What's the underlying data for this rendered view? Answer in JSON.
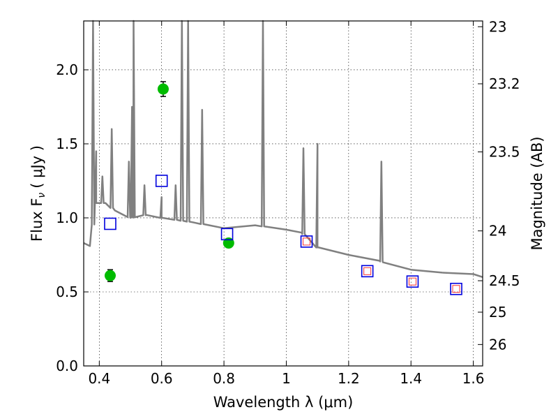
{
  "chart_data": {
    "type": "scatter",
    "xlabel": "Wavelength  λ (μm)",
    "ylabel": "Flux  F",
    "ylabel_sub": "ν",
    "ylabel_unit": "( μJy )",
    "y2label": "Magnitude (AB)",
    "xlim": [
      0.35,
      1.63
    ],
    "ylim": [
      0.0,
      2.33
    ],
    "grid": true,
    "x_ticks": [
      {
        "value": 0.4,
        "label": "0.4"
      },
      {
        "value": 0.6,
        "label": "0.6"
      },
      {
        "value": 0.8,
        "label": "0.8"
      },
      {
        "value": 1.0,
        "label": "1"
      },
      {
        "value": 1.2,
        "label": "1.2"
      },
      {
        "value": 1.4,
        "label": "1.4"
      },
      {
        "value": 1.6,
        "label": "1.6"
      }
    ],
    "y_ticks": [
      {
        "value": 0.0,
        "label": "0.0"
      },
      {
        "value": 0.5,
        "label": "0.5"
      },
      {
        "value": 1.0,
        "label": "1.0"
      },
      {
        "value": 1.5,
        "label": "1.5"
      },
      {
        "value": 2.0,
        "label": "2.0"
      }
    ],
    "y2_ticks": [
      {
        "value": 23,
        "label": "23"
      },
      {
        "value": 23.2,
        "label": "23.2"
      },
      {
        "value": 23.5,
        "label": "23.5"
      },
      {
        "value": 24,
        "label": "24"
      },
      {
        "value": 24.5,
        "label": "24.5"
      },
      {
        "value": 25,
        "label": "25"
      },
      {
        "value": 26,
        "label": "26"
      }
    ],
    "series": [
      {
        "kind": "model-spectrum",
        "color": "#808080",
        "continuum": [
          [
            0.35,
            0.83
          ],
          [
            0.37,
            0.81
          ],
          [
            0.39,
            1.1
          ],
          [
            0.42,
            1.1
          ],
          [
            0.45,
            1.05
          ],
          [
            0.5,
            1.0
          ],
          [
            0.55,
            1.02
          ],
          [
            0.6,
            1.0
          ],
          [
            0.7,
            0.97
          ],
          [
            0.8,
            0.93
          ],
          [
            0.9,
            0.95
          ],
          [
            1.0,
            0.92
          ],
          [
            1.05,
            0.9
          ],
          [
            1.1,
            0.8
          ],
          [
            1.2,
            0.75
          ],
          [
            1.3,
            0.71
          ],
          [
            1.31,
            0.7
          ],
          [
            1.4,
            0.65
          ],
          [
            1.5,
            0.63
          ],
          [
            1.6,
            0.62
          ],
          [
            1.63,
            0.6
          ]
        ],
        "lines": [
          [
            0.38,
            2.33
          ],
          [
            0.39,
            1.45
          ],
          [
            0.41,
            1.28
          ],
          [
            0.44,
            1.6
          ],
          [
            0.495,
            1.38
          ],
          [
            0.505,
            1.75
          ],
          [
            0.51,
            2.33
          ],
          [
            0.545,
            1.22
          ],
          [
            0.6,
            1.14
          ],
          [
            0.645,
            1.22
          ],
          [
            0.665,
            2.33
          ],
          [
            0.685,
            2.33
          ],
          [
            0.73,
            1.73
          ],
          [
            0.925,
            2.33
          ],
          [
            1.055,
            1.47
          ],
          [
            1.1,
            1.5
          ],
          [
            1.305,
            1.38
          ]
        ]
      },
      {
        "kind": "measured",
        "marker": "circle",
        "color": "#00bb00",
        "points": [
          [
            0.435,
            0.61,
            0.04
          ],
          [
            0.605,
            1.87,
            0.05
          ],
          [
            0.815,
            0.83,
            0.03
          ]
        ]
      },
      {
        "kind": "model-photometry",
        "marker": "square",
        "color": "#0000dd",
        "points": [
          [
            0.435,
            0.96
          ],
          [
            0.6,
            1.25
          ],
          [
            0.81,
            0.89
          ],
          [
            1.065,
            0.84
          ],
          [
            1.26,
            0.64
          ],
          [
            1.405,
            0.57
          ],
          [
            1.545,
            0.52
          ]
        ]
      },
      {
        "kind": "model-photometry-inner",
        "marker": "square",
        "color": "#ff3333",
        "points": [
          [
            1.065,
            0.84
          ],
          [
            1.26,
            0.64
          ],
          [
            1.405,
            0.57
          ],
          [
            1.545,
            0.52
          ]
        ]
      }
    ]
  }
}
